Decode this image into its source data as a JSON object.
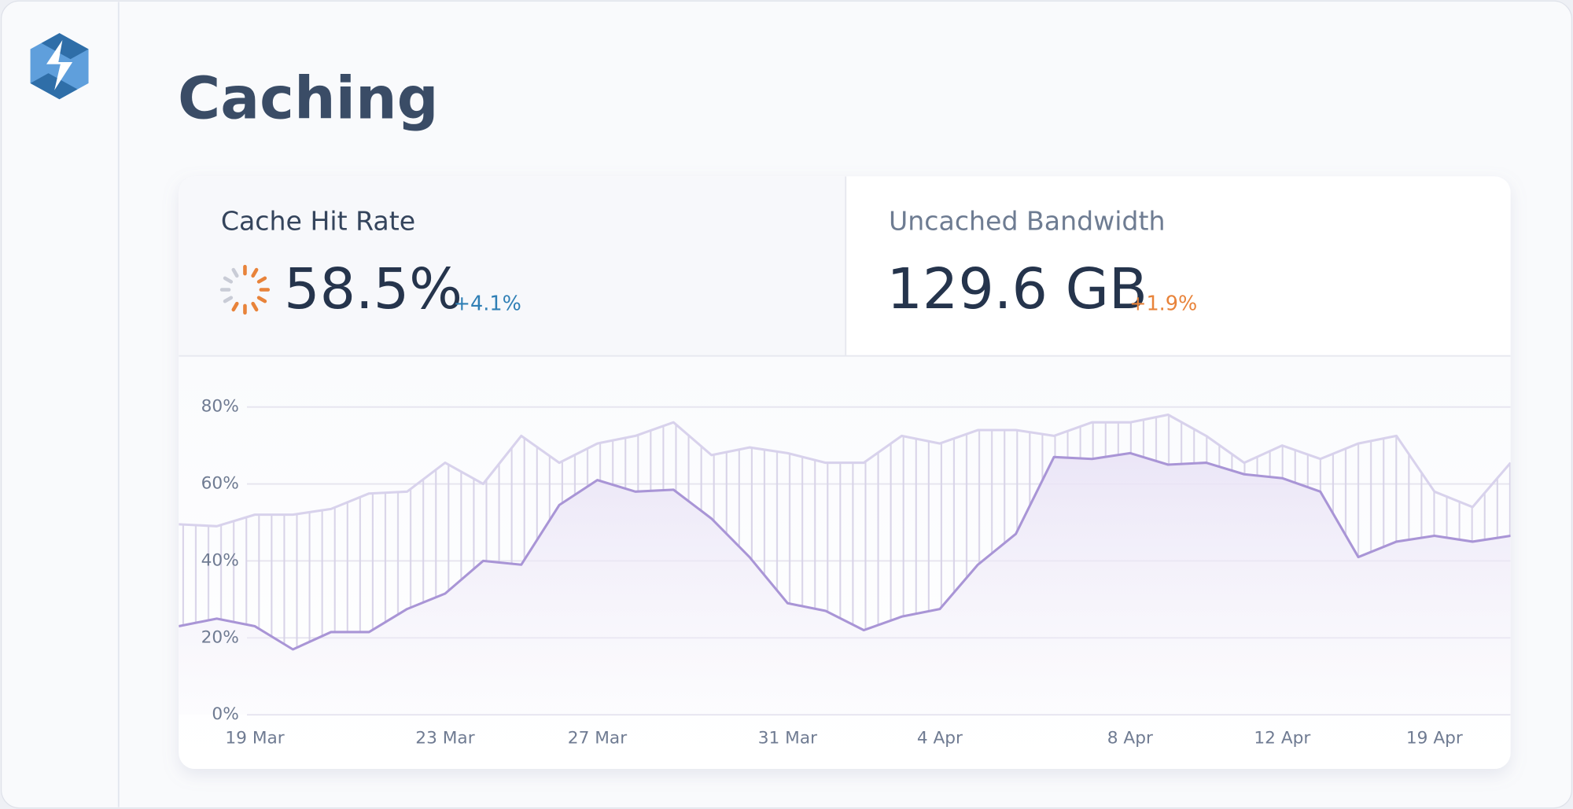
{
  "page": {
    "title": "Caching"
  },
  "metrics": [
    {
      "label": "Cache Hit Rate",
      "value": "58.5%",
      "change": "+4.1%"
    },
    {
      "label": "Uncached Bandwidth",
      "value": "129.6 GB",
      "change": "+1.9%"
    }
  ],
  "chart_data": {
    "type": "line",
    "categories": [
      null,
      null,
      "19 Mar",
      null,
      null,
      null,
      null,
      "23 Mar",
      null,
      null,
      null,
      "27 Mar",
      null,
      null,
      null,
      null,
      "31 Mar",
      null,
      null,
      null,
      "4 Apr",
      null,
      null,
      null,
      null,
      "8 Apr",
      null,
      null,
      null,
      "12 Apr",
      null,
      null,
      null,
      "19 Apr",
      null,
      null
    ],
    "series": [
      {
        "color": "#a995d6",
        "values": [
          23,
          25,
          23,
          17,
          21.5,
          21.5,
          27.5,
          31.5,
          40,
          39,
          54.5,
          61,
          58,
          58.5,
          51,
          41,
          29,
          27,
          22,
          25.5,
          27.5,
          39,
          47,
          67,
          66.5,
          68,
          65,
          65.5,
          62.5,
          61.5,
          58,
          41,
          45,
          46.5,
          45,
          46.5
        ]
      },
      {
        "color": "#d8d2ec",
        "values": [
          49.5,
          49,
          52,
          52,
          53.5,
          57.5,
          58,
          65.5,
          60,
          72.5,
          65.5,
          70.5,
          72.5,
          76,
          67.5,
          69.5,
          68,
          65.5,
          65.5,
          72.5,
          70.5,
          74,
          74,
          72.5,
          76,
          76,
          78,
          72.5,
          65.5,
          70,
          66.5,
          70.5,
          72.5,
          58,
          54,
          65.5
        ]
      }
    ],
    "ylim": [
      0,
      90
    ],
    "yticks": [
      {
        "value": 0,
        "label": "0%"
      },
      {
        "value": 20,
        "label": "20%"
      },
      {
        "value": 40,
        "label": "40%"
      },
      {
        "value": 60,
        "label": "60%"
      },
      {
        "value": 80,
        "label": "80%"
      }
    ],
    "grid": true
  }
}
